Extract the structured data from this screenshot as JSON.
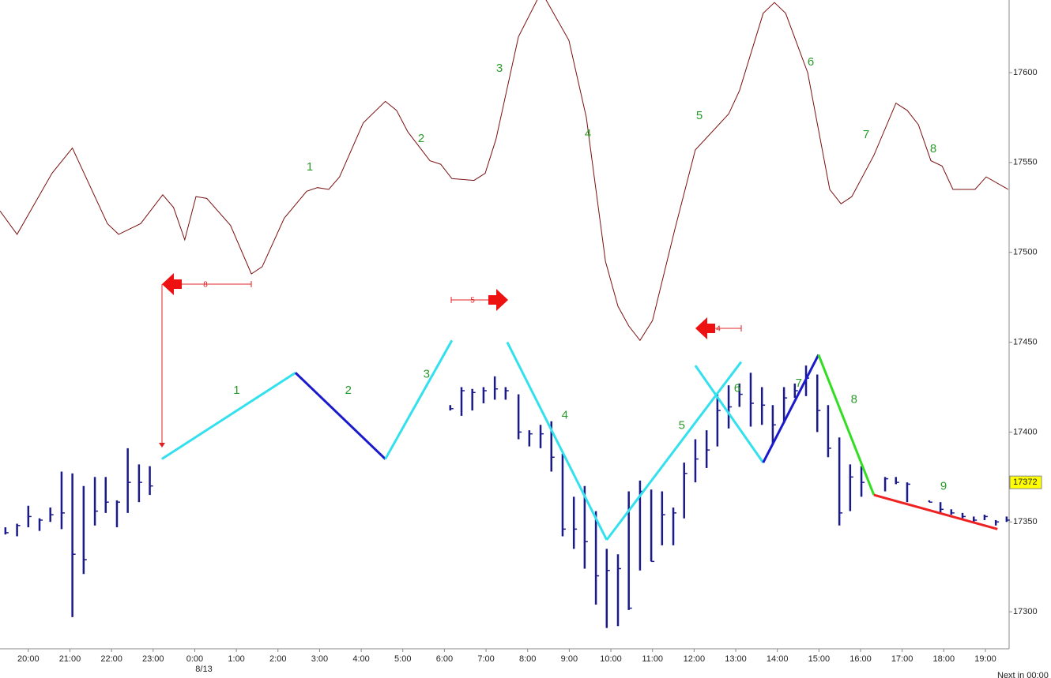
{
  "chart_data": {
    "type": "ohlc",
    "xlim": [
      -0.68,
      23.57
    ],
    "ylim": [
      17279.4,
      17640.4
    ],
    "yticks": [
      17300,
      17350,
      17400,
      17450,
      17500,
      17550,
      17600
    ],
    "xticks": [
      {
        "value": 0,
        "label": "20:00"
      },
      {
        "value": 1,
        "label": "21:00"
      },
      {
        "value": 2,
        "label": "22:00"
      },
      {
        "value": 3,
        "label": "23:00"
      },
      {
        "value": 4,
        "label": "0:00"
      },
      {
        "value": 5,
        "label": "1:00"
      },
      {
        "value": 6,
        "label": "2:00"
      },
      {
        "value": 7,
        "label": "3:00"
      },
      {
        "value": 8,
        "label": "4:00"
      },
      {
        "value": 9,
        "label": "5:00"
      },
      {
        "value": 10,
        "label": "6:00"
      },
      {
        "value": 11,
        "label": "7:00"
      },
      {
        "value": 12,
        "label": "8:00"
      },
      {
        "value": 13,
        "label": "9:00"
      },
      {
        "value": 14,
        "label": "10:00"
      },
      {
        "value": 15,
        "label": "11:00"
      },
      {
        "value": 16,
        "label": "12:00"
      },
      {
        "value": 17,
        "label": "13:00"
      },
      {
        "value": 18,
        "label": "14:00"
      },
      {
        "value": 19,
        "label": "15:00"
      },
      {
        "value": 20,
        "label": "16:00"
      },
      {
        "value": 21,
        "label": "17:00"
      },
      {
        "value": 22,
        "label": "18:00"
      },
      {
        "value": 23,
        "label": "19:00"
      }
    ],
    "date_label": "8/13",
    "footer": "Next in 00:00",
    "color": "#1a1a8c",
    "x": [
      -0.55,
      -0.27,
      0,
      0.27,
      0.53,
      0.8,
      1.06,
      1.33,
      1.6,
      1.86,
      2.13,
      2.39,
      2.66,
      2.92,
      10.14,
      10.41,
      10.67,
      10.94,
      11.21,
      11.47,
      11.78,
      12.04,
      12.31,
      12.57,
      12.84,
      13.11,
      13.37,
      13.64,
      13.9,
      14.17,
      14.43,
      14.7,
      14.97,
      15.23,
      15.5,
      15.76,
      16.03,
      16.3,
      16.56,
      16.83,
      17.09,
      17.36,
      17.63,
      17.89,
      18.16,
      18.42,
      18.69,
      18.96,
      19.22,
      19.49,
      19.75,
      20.02,
      20.59,
      20.85,
      21.12,
      21.65,
      21.92,
      22.18,
      22.45,
      22.72,
      22.98,
      23.25,
      23.51
    ],
    "high": [
      17347,
      17349,
      17359,
      17352,
      17358,
      17378,
      17377,
      17370,
      17375,
      17375,
      17362,
      17391,
      17382,
      17381,
      17415,
      17425,
      17424,
      17425,
      17431,
      17425,
      17421,
      17401,
      17404,
      17406,
      17388,
      17364,
      17370,
      17356,
      17335,
      17332,
      17367,
      17373,
      17368,
      17367,
      17358,
      17383,
      17396,
      17401,
      17421,
      17426,
      17427,
      17433,
      17425,
      17415,
      17425,
      17427,
      17437,
      17432,
      17415,
      17397,
      17382,
      17381,
      17375,
      17375,
      17372,
      17362,
      17361,
      17357,
      17355,
      17353,
      17354,
      17351,
      17353
    ],
    "low": [
      17343,
      17342,
      17347,
      17345,
      17350,
      17346,
      17297,
      17321,
      17348,
      17355,
      17347,
      17355,
      17361,
      17365,
      17412,
      17409,
      17412,
      17416,
      17418,
      17418,
      17396,
      17392,
      17391,
      17378,
      17342,
      17335,
      17324,
      17304,
      17291,
      17292,
      17301,
      17323,
      17328,
      17337,
      17337,
      17352,
      17372,
      17380,
      17392,
      17402,
      17414,
      17403,
      17404,
      17393,
      17405,
      17419,
      17420,
      17400,
      17386,
      17348,
      17356,
      17364,
      17367,
      17371,
      17361,
      17361,
      17355,
      17354,
      17352,
      17350,
      17351,
      17348,
      17350
    ],
    "close": [
      17344,
      17348,
      17353,
      17351,
      17354,
      17355,
      17332,
      17329,
      17356,
      17361,
      17361,
      17372,
      17372,
      17370,
      17413,
      17423,
      17422,
      17423,
      17424,
      17423,
      17400,
      17399,
      17399,
      17386,
      17346,
      17346,
      17339,
      17320,
      17323,
      17324,
      17302,
      17367,
      17328,
      17354,
      17355,
      17377,
      17385,
      17390,
      17412,
      17414,
      17421,
      17416,
      17415,
      17404,
      17419,
      17423,
      17430,
      17412,
      17391,
      17355,
      17375,
      17372,
      17374,
      17372,
      17371,
      17361,
      17357,
      17355,
      17353,
      17351,
      17353,
      17350,
      17351
    ],
    "overlay": {
      "color": "#7a1010",
      "x": [
        -0.68,
        -0.27,
        0.57,
        1.06,
        1.9,
        2.17,
        2.7,
        3.23,
        3.49,
        3.76,
        4.03,
        4.29,
        4.86,
        5.36,
        5.62,
        6.15,
        6.69,
        6.95,
        7.22,
        7.48,
        8.05,
        8.58,
        8.85,
        9.12,
        9.65,
        9.91,
        10.18,
        10.71,
        10.98,
        11.24,
        11.78,
        12.33,
        12.99,
        13.41,
        13.87,
        14.17,
        14.43,
        14.7,
        15.0,
        15.54,
        16.03,
        16.83,
        17.09,
        17.66,
        17.93,
        18.2,
        18.73,
        19.26,
        19.53,
        19.79,
        20.32,
        20.85,
        21.12,
        21.39,
        21.69,
        21.96,
        22.22,
        22.75,
        23.02,
        23.55
      ],
      "values": [
        17523,
        17510,
        17544,
        17558,
        17516,
        17510,
        17516,
        17532,
        17525,
        17507,
        17531,
        17530,
        17515,
        17488,
        17492,
        17519,
        17534,
        17536,
        17535,
        17542,
        17572,
        17584,
        17579,
        17567,
        17551,
        17549,
        17541,
        17540,
        17544,
        17563,
        17620,
        17645,
        17618,
        17575,
        17495,
        17470,
        17459,
        17451,
        17462,
        17513,
        17557,
        17577,
        17590,
        17633,
        17639,
        17633,
        17600,
        17535,
        17527,
        17531,
        17554,
        17583,
        17579,
        17571,
        17551,
        17548,
        17535,
        17535,
        17542,
        17535
      ],
      "labels": [
        "1",
        "2",
        "3",
        "4",
        "5",
        "6",
        "7",
        "8"
      ]
    },
    "zigzag": [
      {
        "x": [
          3.21,
          6.42
        ],
        "values": [
          17385,
          17433
        ],
        "color": "#33e0ee",
        "label": "1"
      },
      {
        "x": [
          6.42,
          8.58
        ],
        "values": [
          17433,
          17385
        ],
        "color": "#1a1acc",
        "label": "2"
      },
      {
        "x": [
          8.58,
          10.18
        ],
        "values": [
          17385,
          17451
        ],
        "color": "#33e0ee",
        "label": "3"
      },
      {
        "x": [
          11.51,
          13.9
        ],
        "values": [
          17450,
          17340
        ],
        "color": "#33e0ee",
        "label": "4"
      },
      {
        "x": [
          13.9,
          17.13
        ],
        "values": [
          17340,
          17439
        ],
        "color": "#33e0ee",
        "label": "5"
      },
      {
        "x": [
          16.03,
          17.66
        ],
        "values": [
          17437,
          17383
        ],
        "color": "#33e0ee",
        "label": "6"
      },
      {
        "x": [
          17.66,
          18.99
        ],
        "values": [
          17383,
          17443
        ],
        "color": "#1a1acc",
        "label": "7"
      },
      {
        "x": [
          18.99,
          20.32
        ],
        "values": [
          17443,
          17365
        ],
        "color": "#33dd22",
        "label": "8"
      },
      {
        "x": [
          20.32,
          23.29
        ],
        "values": [
          17365,
          17346
        ],
        "color": "#ee2222",
        "label": "9"
      }
    ],
    "arrows": [
      {
        "label": "8"
      },
      {
        "label": "5"
      },
      {
        "label": "4"
      }
    ],
    "last_price": 17372
  }
}
